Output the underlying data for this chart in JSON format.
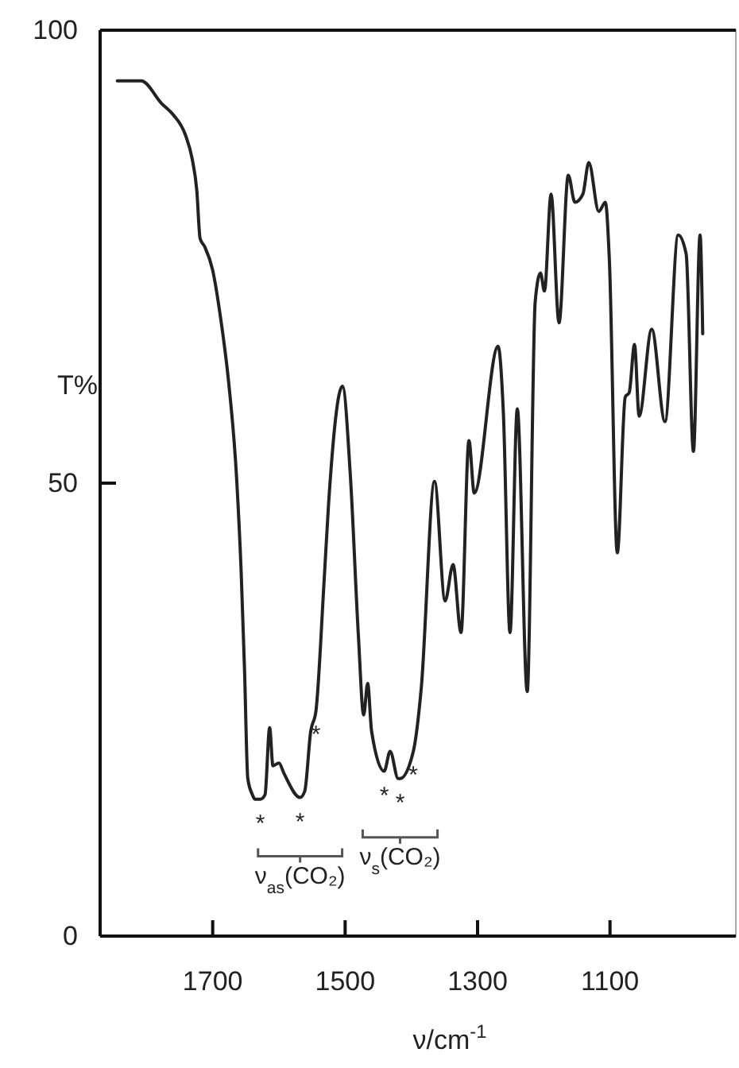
{
  "chart_data": {
    "type": "line",
    "xlabel": "ν/cm$^{-1}$",
    "ylabel": "T%",
    "xlim": [
      1870,
      910
    ],
    "xticks": [
      1700,
      1500,
      1300,
      1100
    ],
    "ylim": [
      0,
      100
    ],
    "yticks": [
      0,
      50,
      100
    ],
    "grid": false,
    "marker": "none",
    "line_style": "solid",
    "series": [
      {
        "color": "#222222",
        "x": [
          1844,
          1808,
          1777,
          1760,
          1741,
          1731,
          1724,
          1719,
          1712,
          1700,
          1688,
          1676,
          1664,
          1657,
          1652,
          1647,
          1640,
          1636,
          1628,
          1621,
          1614,
          1609,
          1600,
          1592,
          1568,
          1561,
          1552,
          1544,
          1532,
          1525,
          1504,
          1492,
          1480,
          1472,
          1466,
          1460,
          1441,
          1432,
          1420,
          1417,
          1397,
          1385,
          1365,
          1349,
          1337,
          1325,
          1313,
          1305,
          1269,
          1261,
          1251,
          1240,
          1225,
          1213,
          1205,
          1199,
          1189,
          1177,
          1163,
          1153,
          1141,
          1132,
          1117,
          1107,
          1101,
          1089,
          1077,
          1071,
          1063,
          1056,
          1037,
          1017,
          997,
          985,
          974,
          964,
          960
        ],
        "values": [
          94.4,
          94.4,
          91.9,
          90.7,
          88.4,
          85.8,
          82.3,
          77,
          76.1,
          73.5,
          68.2,
          61.2,
          50.7,
          40.2,
          29.6,
          17.4,
          15.6,
          15.1,
          15.1,
          15.6,
          23,
          18.8,
          19.1,
          17.9,
          15.3,
          16,
          22.6,
          24.9,
          38.9,
          47.7,
          60.7,
          50.7,
          33.2,
          24.4,
          27.9,
          22.6,
          18.2,
          20.4,
          17.4,
          17.4,
          20.4,
          27.4,
          50.2,
          37,
          41,
          33.5,
          54.7,
          48.9,
          65.1,
          57.7,
          33.5,
          58.2,
          27,
          70,
          73.2,
          71.2,
          81.9,
          67.7,
          84,
          81,
          81.9,
          85.4,
          80,
          81,
          74.7,
          42.3,
          59.5,
          60,
          65.3,
          57.4,
          67,
          56.8,
          77.4,
          75.3,
          53.5,
          77.4,
          66.5
        ]
      }
    ],
    "annotations": [
      {
        "text": "*",
        "x": 1628,
        "y": 15.1
      },
      {
        "text": "*",
        "x": 1568,
        "y": 15.3
      },
      {
        "text": "*",
        "x": 1544,
        "y": 24.9
      },
      {
        "text": "*",
        "x": 1441,
        "y": 18.2
      },
      {
        "text": "*",
        "x": 1417,
        "y": 17.4
      },
      {
        "text": "*",
        "x": 1397,
        "y": 20.4
      },
      {
        "text": "ν$_{as}$(CO₂)",
        "x": 1568,
        "y": 15.3
      },
      {
        "text": "ν$_{s}$(CO₂)",
        "x": 1417,
        "y": 17.4
      }
    ]
  }
}
